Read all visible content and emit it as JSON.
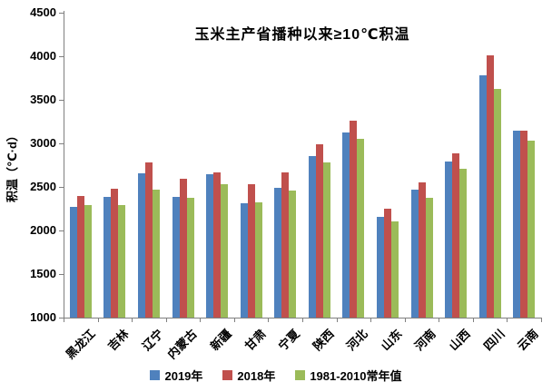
{
  "chart_data": {
    "type": "bar",
    "title": "玉米主产省播种以来≥10℃积温",
    "ylabel": "积温（℃·d）",
    "xlabel": "",
    "ylim": [
      1000,
      4500
    ],
    "yticks": [
      1000,
      1500,
      2000,
      2500,
      3000,
      3500,
      4000,
      4500
    ],
    "grid": false,
    "legend_position": "bottom",
    "categories": [
      "黑龙江",
      "吉林",
      "辽宁",
      "内蒙古",
      "新疆",
      "甘肃",
      "宁夏",
      "陕西",
      "河北",
      "山东",
      "河南",
      "山西",
      "四川",
      "云南"
    ],
    "series": [
      {
        "name": "2019年",
        "color": "#4F81BD",
        "values": [
          2270,
          2390,
          2660,
          2390,
          2650,
          2310,
          2490,
          2850,
          3130,
          2160,
          2470,
          2790,
          3780,
          3150
        ]
      },
      {
        "name": "2018年",
        "color": "#C0504D",
        "values": [
          2400,
          2480,
          2780,
          2590,
          2670,
          2530,
          2670,
          2990,
          3260,
          2250,
          2550,
          2890,
          4010,
          3150
        ]
      },
      {
        "name": "1981-2010常年值",
        "color": "#9BBB59",
        "values": [
          2290,
          2290,
          2470,
          2380,
          2530,
          2320,
          2460,
          2780,
          3050,
          2100,
          2380,
          2710,
          3620,
          3030
        ]
      }
    ]
  }
}
